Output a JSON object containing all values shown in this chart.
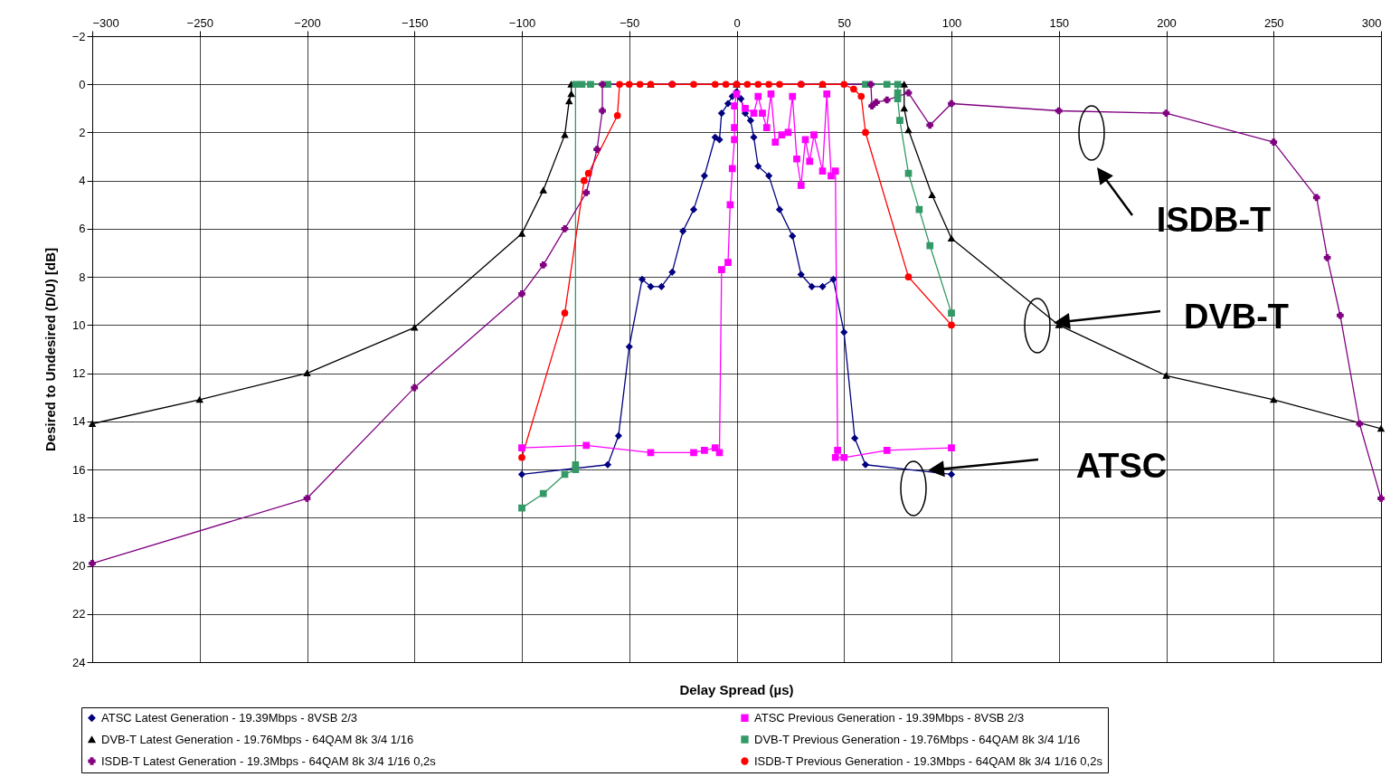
{
  "chart_data": {
    "type": "line",
    "xlabel": "Delay Spread (µs)",
    "ylabel": "Desired to Undesired (D/U) [dB]",
    "xlim": [
      -300,
      300
    ],
    "xticks": [
      -300,
      -250,
      -200,
      -150,
      -100,
      -50,
      0,
      50,
      100,
      150,
      200,
      250,
      300
    ],
    "ylim": [
      24,
      -2
    ],
    "yticks": [
      -2,
      0,
      2,
      4,
      6,
      8,
      10,
      12,
      14,
      16,
      18,
      20,
      22,
      24
    ],
    "grid": true,
    "legend": "bottom",
    "line_style": "solid",
    "series": [
      {
        "name": "ATSC Latest Generation - 19.39Mbps  - 8VSB 2/3",
        "color": "#000080",
        "marker": "diamond",
        "x": [
          -100,
          -60,
          -55,
          -50,
          -44,
          -40,
          -35,
          -30,
          -25,
          -20,
          -15,
          -10,
          -8,
          -7,
          -4,
          -2,
          0,
          2,
          4,
          6.5,
          8,
          10,
          15,
          20,
          26,
          30,
          35,
          40,
          45,
          50,
          55,
          60,
          100
        ],
        "values": [
          16.2,
          15.8,
          14.6,
          10.9,
          8.1,
          8.4,
          8.4,
          7.8,
          6.1,
          5.2,
          3.8,
          2.2,
          2.3,
          1.2,
          0.8,
          0.5,
          0.3,
          0.6,
          1.2,
          1.5,
          2.2,
          3.4,
          3.8,
          5.2,
          6.3,
          7.9,
          8.4,
          8.4,
          8.1,
          10.3,
          14.7,
          15.8,
          16.2
        ]
      },
      {
        "name": "ATSC Previous Generation - 19.39Mbps - 8VSB 2/3",
        "color": "#ff00ff",
        "marker": "square",
        "x": [
          -100,
          -70,
          -40,
          -20,
          -15,
          -10,
          -8,
          -7,
          -4,
          -3,
          -2,
          -1,
          -1,
          -1,
          0,
          4,
          8,
          10,
          12,
          14,
          16,
          18,
          21,
          24,
          26,
          28,
          30,
          32,
          34,
          36,
          40,
          42,
          44,
          46,
          47,
          46,
          50,
          70,
          100
        ],
        "values": [
          15.1,
          15.0,
          15.3,
          15.3,
          15.2,
          15.1,
          15.3,
          7.7,
          7.4,
          5.0,
          3.5,
          2.3,
          1.8,
          0.9,
          0.4,
          1.0,
          1.2,
          0.5,
          1.2,
          1.8,
          0.4,
          2.4,
          2.1,
          2.0,
          0.5,
          3.1,
          4.2,
          2.3,
          3.2,
          2.1,
          3.6,
          0.4,
          3.8,
          3.6,
          15.2,
          15.5,
          15.5,
          15.2,
          15.1
        ]
      },
      {
        "name": "DVB-T Latest Generation - 19.76Mbps - 64QAM 8k 3/4 1/16",
        "color": "#000000",
        "marker": "triangle",
        "x": [
          -300,
          -250,
          -200,
          -150,
          -100,
          -90,
          -80,
          -78,
          -77,
          -77,
          -40,
          0,
          40,
          78,
          78,
          80,
          91,
          100,
          150,
          200,
          250,
          300
        ],
        "values": [
          14.1,
          13.1,
          12.0,
          10.1,
          6.2,
          4.4,
          2.1,
          0.7,
          0.4,
          0,
          0,
          0,
          0,
          0,
          1.0,
          1.9,
          4.6,
          6.4,
          10.0,
          12.1,
          13.1,
          14.3
        ]
      },
      {
        "name": "DVB-T Previous Generation - 19.76Mbps - 64QAM 8k 3/4 1/16",
        "color": "#339966",
        "marker": "square",
        "x": [
          -100,
          -90,
          -80,
          -75,
          -75,
          -75,
          -72,
          -68,
          -60,
          60,
          70,
          75,
          75,
          75,
          76,
          80,
          85,
          90,
          100
        ],
        "values": [
          17.6,
          17.0,
          16.2,
          16.0,
          15.8,
          0,
          0,
          0,
          0,
          0,
          0,
          0,
          0.35,
          0.6,
          1.5,
          3.7,
          5.2,
          6.7,
          9.5
        ]
      },
      {
        "name": "ISDB-T Latest Generation - 19.3Mbps - 64QAM 8k 3/4 1/16 0,2s",
        "color": "#800080",
        "marker": "cross",
        "x": [
          -300,
          -200,
          -150,
          -100,
          -90,
          -80,
          -70,
          -65,
          -62.5,
          -62.5,
          -30,
          0,
          30,
          62.5,
          63,
          65,
          70,
          80,
          90,
          100,
          150,
          200,
          250,
          270,
          275,
          281,
          290,
          300
        ],
        "values": [
          19.9,
          17.2,
          12.6,
          8.7,
          7.5,
          6.0,
          4.5,
          2.7,
          1.1,
          0,
          0,
          0,
          0,
          0,
          0.9,
          0.75,
          0.65,
          0.35,
          1.7,
          0.8,
          1.1,
          1.2,
          2.4,
          4.7,
          7.2,
          9.6,
          14.1,
          17.2
        ]
      },
      {
        "name": "ISDB-T Previous Generation - 19.3Mbps - 64QAM 8k 3/4 1/16 0,2s",
        "color": "#ff0000",
        "marker": "circle",
        "x": [
          -100,
          -80,
          -71,
          -69,
          -55.5,
          -54.5,
          -50,
          -45,
          -40,
          -30,
          -20,
          -10,
          -5,
          0,
          5,
          10,
          15,
          20,
          30,
          40,
          50,
          54.5,
          58,
          60,
          80,
          100
        ],
        "values": [
          15.5,
          9.5,
          4.0,
          3.7,
          1.3,
          0,
          0,
          0,
          0,
          0,
          0,
          0,
          0,
          0,
          0,
          0,
          0,
          0,
          0,
          0,
          0,
          0.2,
          0.5,
          2.0,
          8.0,
          10.0
        ]
      }
    ],
    "annotations": [
      "ISDB-T",
      "DVB-T",
      "ATSC"
    ]
  }
}
